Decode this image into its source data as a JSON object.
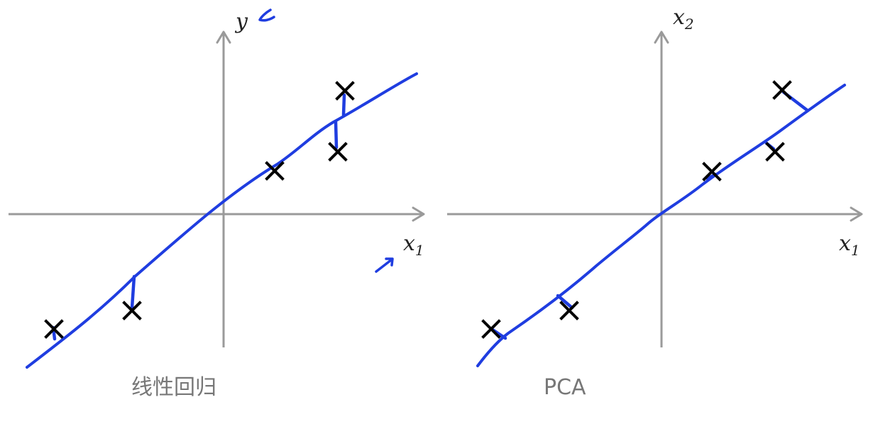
{
  "panels": [
    {
      "id": "linear-regression",
      "caption": "线性回归",
      "x_axis": {
        "symbol": "x",
        "subscript": "1"
      },
      "y_axis": {
        "symbol": "y",
        "subscript": ""
      },
      "points": [
        [
          -2.4,
          -1.6
        ],
        [
          -1.3,
          -1.35
        ],
        [
          0.7,
          0.6
        ],
        [
          1.6,
          1.0
        ],
        [
          1.7,
          1.75
        ]
      ],
      "residual_type": "vertical"
    },
    {
      "id": "pca",
      "caption": "PCA",
      "x_axis": {
        "symbol": "x",
        "subscript": "1"
      },
      "y_axis": {
        "symbol": "x",
        "subscript": "2"
      },
      "points": [
        [
          -2.4,
          -1.6
        ],
        [
          -1.3,
          -1.35
        ],
        [
          0.7,
          0.6
        ],
        [
          1.6,
          1.0
        ],
        [
          1.7,
          1.75
        ]
      ],
      "residual_type": "orthogonal"
    }
  ],
  "colors": {
    "fit_line": "#1f3de0",
    "axes": "#9a9a9a",
    "points": "#000000",
    "caption": "#777777"
  }
}
